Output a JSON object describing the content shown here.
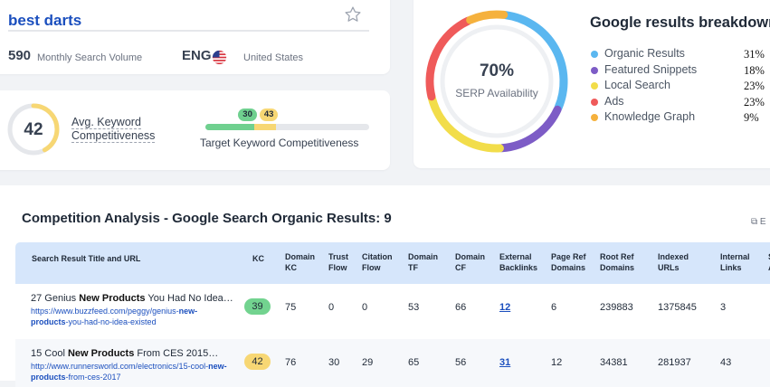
{
  "keyword": {
    "title": "best darts",
    "volume": "590",
    "volume_label": "Monthly Search Volume",
    "language": "ENG",
    "country": "United States"
  },
  "competitiveness": {
    "avg_value": "42",
    "avg_label": "Avg. Keyword Competitiveness",
    "target_low": "30",
    "target_high": "43",
    "target_label": "Target Keyword Competitiveness"
  },
  "serp": {
    "percent": "70%",
    "sub_label": "SERP Availability",
    "title": "Google results breakdown",
    "legend": [
      {
        "label": "Organic Results",
        "value": "31%",
        "color": "#5ab7f0"
      },
      {
        "label": "Featured Snippets",
        "value": "18%",
        "color": "#7d5cc6"
      },
      {
        "label": "Local Search",
        "value": "23%",
        "color": "#f2dd4a"
      },
      {
        "label": "Ads",
        "value": "23%",
        "color": "#ef5a5a"
      },
      {
        "label": "Knowledge Graph",
        "value": "9%",
        "color": "#f5b13d"
      }
    ]
  },
  "competition": {
    "title": "Competition Analysis - Google Search Organic Results: 9",
    "export_label": "E",
    "headers": [
      "Search Result Title and URL",
      "KC",
      "Domain KC",
      "Trust Flow",
      "Citation Flow",
      "Domain TF",
      "Domain CF",
      "External Backlinks",
      "Page Ref Domains",
      "Root Ref Domains",
      "Indexed URLs",
      "Internal Links",
      "S A"
    ],
    "rows": [
      {
        "title_pre": "27 Genius ",
        "title_bold": "New Products",
        "title_post": " You Had No Idea…",
        "url_pre": "https://www.buzzfeed.com/peggy/genius-",
        "url_bold1": "new-products",
        "url_post": "-you-had-no-idea-existed",
        "kc": "39",
        "kc_color": "#72d38f",
        "domain_kc": "75",
        "trust_flow": "0",
        "citation_flow": "0",
        "domain_tf": "53",
        "domain_cf": "66",
        "external_backlinks": "12",
        "page_ref_domains": "6",
        "root_ref_domains": "239883",
        "indexed_urls": "1375845",
        "internal_links": "3"
      },
      {
        "title_pre": "15 Cool ",
        "title_bold": "New Products",
        "title_post": " From CES 2015…",
        "url_pre": "http://www.runnersworld.com/electronics/15-cool-",
        "url_bold1": "new-products",
        "url_post": "-from-ces-2017",
        "kc": "42",
        "kc_color": "#f7d774",
        "domain_kc": "76",
        "trust_flow": "30",
        "citation_flow": "29",
        "domain_tf": "65",
        "domain_cf": "56",
        "external_backlinks": "31",
        "page_ref_domains": "12",
        "root_ref_domains": "34381",
        "indexed_urls": "281937",
        "internal_links": "43"
      }
    ]
  }
}
